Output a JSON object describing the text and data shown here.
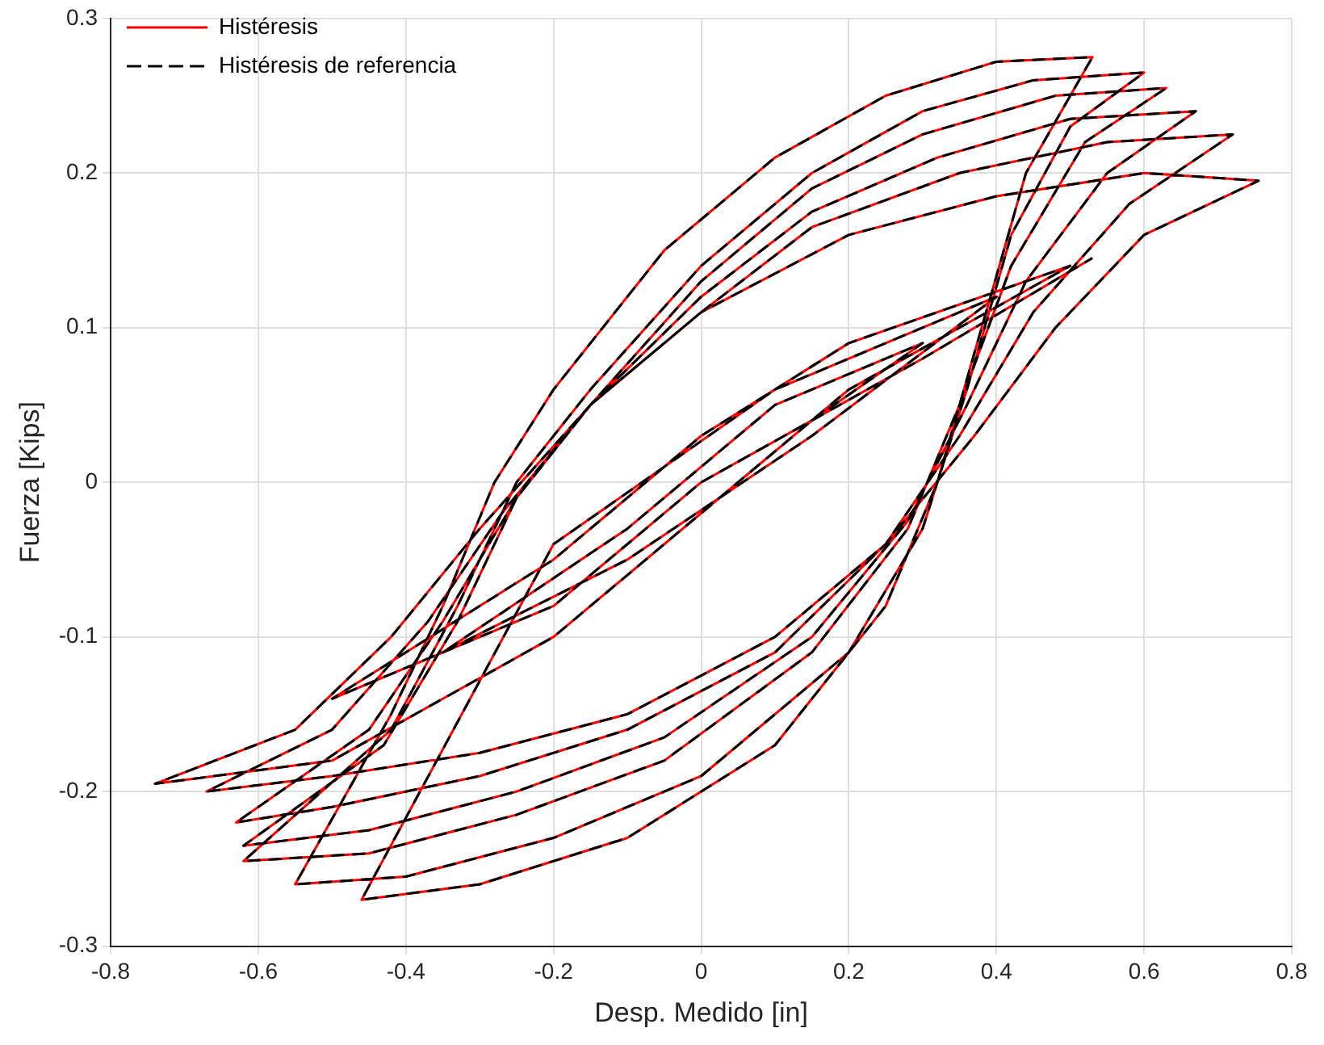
{
  "chart_data": {
    "type": "line",
    "xlabel": "Desp. Medido [in]",
    "ylabel": "Fuerza [Kips]",
    "xlim": [
      -0.8,
      0.8
    ],
    "xticks": [
      -0.8,
      -0.6,
      -0.4,
      -0.2,
      0,
      0.2,
      0.4,
      0.6,
      0.8
    ],
    "ylim": [
      -0.3,
      0.3
    ],
    "yticks": [
      -0.3,
      -0.2,
      -0.1,
      0,
      0.1,
      0.2,
      0.3
    ],
    "grid": true,
    "legend": "top left",
    "marker": "none",
    "series": [
      {
        "name": "Histéresis",
        "color": "#ff0000",
        "line_style": "solid",
        "x": [
          0,
          0.15,
          0.3,
          0.1,
          -0.1,
          -0.35,
          -0.1,
          0.15,
          0.4,
          0.1,
          -0.2,
          -0.46,
          -0.3,
          -0.1,
          0.1,
          0.25,
          0.32,
          0.38,
          0.44,
          0.53,
          0.4,
          0.25,
          0.1,
          -0.05,
          -0.2,
          -0.28,
          -0.35,
          -0.42,
          -0.55,
          -0.4,
          -0.2,
          0,
          0.2,
          0.3,
          0.36,
          0.42,
          0.5,
          0.6,
          0.45,
          0.3,
          0.15,
          0,
          -0.15,
          -0.25,
          -0.33,
          -0.42,
          -0.62,
          -0.45,
          -0.25,
          -0.05,
          0.15,
          0.28,
          0.35,
          0.42,
          0.52,
          0.63,
          0.48,
          0.3,
          0.15,
          0,
          -0.15,
          -0.25,
          -0.33,
          -0.43,
          -0.62,
          -0.45,
          -0.25,
          -0.05,
          0.15,
          0.28,
          0.36,
          0.44,
          0.55,
          0.67,
          0.5,
          0.32,
          0.15,
          0,
          -0.15,
          -0.25,
          -0.35,
          -0.45,
          -0.63,
          -0.5,
          -0.3,
          -0.1,
          0.1,
          0.25,
          0.35,
          0.45,
          0.58,
          0.72,
          0.55,
          0.35,
          0.15,
          0,
          -0.15,
          -0.27,
          -0.37,
          -0.5,
          -0.67,
          -0.5,
          -0.3,
          -0.1,
          0.1,
          0.25,
          0.37,
          0.48,
          0.6,
          0.755,
          0.6,
          0.4,
          0.2,
          0,
          -0.15,
          -0.3,
          -0.42,
          -0.55,
          -0.74,
          -0.5,
          -0.2,
          0,
          0.2,
          0.5,
          0.2,
          0,
          -0.2,
          -0.5,
          -0.2,
          0,
          0.3,
          0.53
        ],
        "values": [
          0,
          0.04,
          0.09,
          0.05,
          -0.03,
          -0.11,
          -0.05,
          0.03,
          0.12,
          0.06,
          -0.04,
          -0.27,
          -0.26,
          -0.23,
          -0.17,
          -0.08,
          0,
          0.1,
          0.2,
          0.275,
          0.272,
          0.25,
          0.21,
          0.15,
          0.06,
          0,
          -0.08,
          -0.15,
          -0.26,
          -0.255,
          -0.23,
          -0.19,
          -0.11,
          -0.03,
          0.06,
          0.16,
          0.23,
          0.265,
          0.26,
          0.24,
          0.2,
          0.14,
          0.06,
          0,
          -0.08,
          -0.16,
          -0.245,
          -0.24,
          -0.215,
          -0.18,
          -0.11,
          -0.03,
          0.05,
          0.14,
          0.22,
          0.255,
          0.25,
          0.225,
          0.19,
          0.13,
          0.05,
          -0.01,
          -0.09,
          -0.17,
          -0.235,
          -0.225,
          -0.2,
          -0.165,
          -0.1,
          -0.025,
          0.05,
          0.13,
          0.2,
          0.24,
          0.235,
          0.21,
          0.175,
          0.12,
          0.05,
          -0.01,
          -0.09,
          -0.16,
          -0.22,
          -0.21,
          -0.19,
          -0.16,
          -0.11,
          -0.04,
          0.03,
          0.11,
          0.18,
          0.225,
          0.22,
          0.2,
          0.165,
          0.11,
          0.05,
          -0.02,
          -0.09,
          -0.16,
          -0.2,
          -0.19,
          -0.175,
          -0.15,
          -0.1,
          -0.04,
          0.03,
          0.1,
          0.16,
          0.195,
          0.2,
          0.185,
          0.16,
          0.11,
          0.05,
          -0.03,
          -0.1,
          -0.16,
          -0.195,
          -0.18,
          -0.1,
          -0.02,
          0.06,
          0.14,
          0.09,
          0.03,
          -0.05,
          -0.14,
          -0.08,
          0,
          0.08,
          0.145
        ]
      },
      {
        "name": "Histéresis de referencia",
        "color": "#000000",
        "line_style": "dashed",
        "x": [
          0,
          0.15,
          0.3,
          0.1,
          -0.1,
          -0.35,
          -0.1,
          0.15,
          0.4,
          0.1,
          -0.2,
          -0.46,
          -0.3,
          -0.1,
          0.1,
          0.25,
          0.32,
          0.38,
          0.44,
          0.53,
          0.4,
          0.25,
          0.1,
          -0.05,
          -0.2,
          -0.28,
          -0.35,
          -0.42,
          -0.55,
          -0.4,
          -0.2,
          0,
          0.2,
          0.3,
          0.36,
          0.42,
          0.5,
          0.6,
          0.45,
          0.3,
          0.15,
          0,
          -0.15,
          -0.25,
          -0.33,
          -0.42,
          -0.62,
          -0.45,
          -0.25,
          -0.05,
          0.15,
          0.28,
          0.35,
          0.42,
          0.52,
          0.63,
          0.48,
          0.3,
          0.15,
          0,
          -0.15,
          -0.25,
          -0.33,
          -0.43,
          -0.62,
          -0.45,
          -0.25,
          -0.05,
          0.15,
          0.28,
          0.36,
          0.44,
          0.55,
          0.67,
          0.5,
          0.32,
          0.15,
          0,
          -0.15,
          -0.25,
          -0.35,
          -0.45,
          -0.63,
          -0.5,
          -0.3,
          -0.1,
          0.1,
          0.25,
          0.35,
          0.45,
          0.58,
          0.72,
          0.55,
          0.35,
          0.15,
          0,
          -0.15,
          -0.27,
          -0.37,
          -0.5,
          -0.67,
          -0.5,
          -0.3,
          -0.1,
          0.1,
          0.25,
          0.37,
          0.48,
          0.6,
          0.755,
          0.6,
          0.4,
          0.2,
          0,
          -0.15,
          -0.3,
          -0.42,
          -0.55,
          -0.74,
          -0.5,
          -0.2,
          0,
          0.2,
          0.5,
          0.2,
          0,
          -0.2,
          -0.5,
          -0.2,
          0,
          0.3,
          0.53
        ],
        "values": [
          0,
          0.04,
          0.09,
          0.05,
          -0.03,
          -0.11,
          -0.05,
          0.03,
          0.12,
          0.06,
          -0.04,
          -0.27,
          -0.26,
          -0.23,
          -0.17,
          -0.08,
          0,
          0.1,
          0.2,
          0.275,
          0.272,
          0.25,
          0.21,
          0.15,
          0.06,
          0,
          -0.08,
          -0.15,
          -0.26,
          -0.255,
          -0.23,
          -0.19,
          -0.11,
          -0.03,
          0.06,
          0.16,
          0.23,
          0.265,
          0.26,
          0.24,
          0.2,
          0.14,
          0.06,
          0,
          -0.08,
          -0.16,
          -0.245,
          -0.24,
          -0.215,
          -0.18,
          -0.11,
          -0.03,
          0.05,
          0.14,
          0.22,
          0.255,
          0.25,
          0.225,
          0.19,
          0.13,
          0.05,
          -0.01,
          -0.09,
          -0.17,
          -0.235,
          -0.225,
          -0.2,
          -0.165,
          -0.1,
          -0.025,
          0.05,
          0.13,
          0.2,
          0.24,
          0.235,
          0.21,
          0.175,
          0.12,
          0.05,
          -0.01,
          -0.09,
          -0.16,
          -0.22,
          -0.21,
          -0.19,
          -0.16,
          -0.11,
          -0.04,
          0.03,
          0.11,
          0.18,
          0.225,
          0.22,
          0.2,
          0.165,
          0.11,
          0.05,
          -0.02,
          -0.09,
          -0.16,
          -0.2,
          -0.19,
          -0.175,
          -0.15,
          -0.1,
          -0.04,
          0.03,
          0.1,
          0.16,
          0.195,
          0.2,
          0.185,
          0.16,
          0.11,
          0.05,
          -0.03,
          -0.1,
          -0.16,
          -0.195,
          -0.18,
          -0.1,
          -0.02,
          0.06,
          0.14,
          0.09,
          0.03,
          -0.05,
          -0.14,
          -0.08,
          0,
          0.08,
          0.145
        ]
      }
    ]
  }
}
